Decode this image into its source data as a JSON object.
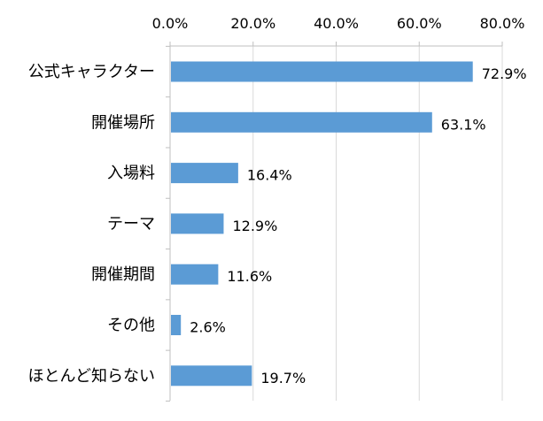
{
  "chart_data": {
    "type": "bar",
    "orientation": "horizontal",
    "categories": [
      "公式キャラクター",
      "開催場所",
      "入場料",
      "テーマ",
      "開催期間",
      "その他",
      "ほとんど知らない"
    ],
    "values": [
      72.9,
      63.1,
      16.4,
      12.9,
      11.6,
      2.6,
      19.7
    ],
    "data_labels": [
      "72.9%",
      "63.1%",
      "16.4%",
      "12.9%",
      "11.6%",
      "2.6%",
      "19.7%"
    ],
    "x_ticks": [
      "0.0%",
      "20.0%",
      "40.0%",
      "60.0%",
      "80.0%"
    ],
    "tick_values": [
      0,
      20,
      40,
      60,
      80
    ],
    "xlim": [
      0,
      80
    ],
    "x_axis_position": "top",
    "grid": true,
    "legend": "none",
    "bar_color": "#5B9BD5",
    "grid_color": "#D9D9D9",
    "axis_color": "#BFBFBF"
  }
}
